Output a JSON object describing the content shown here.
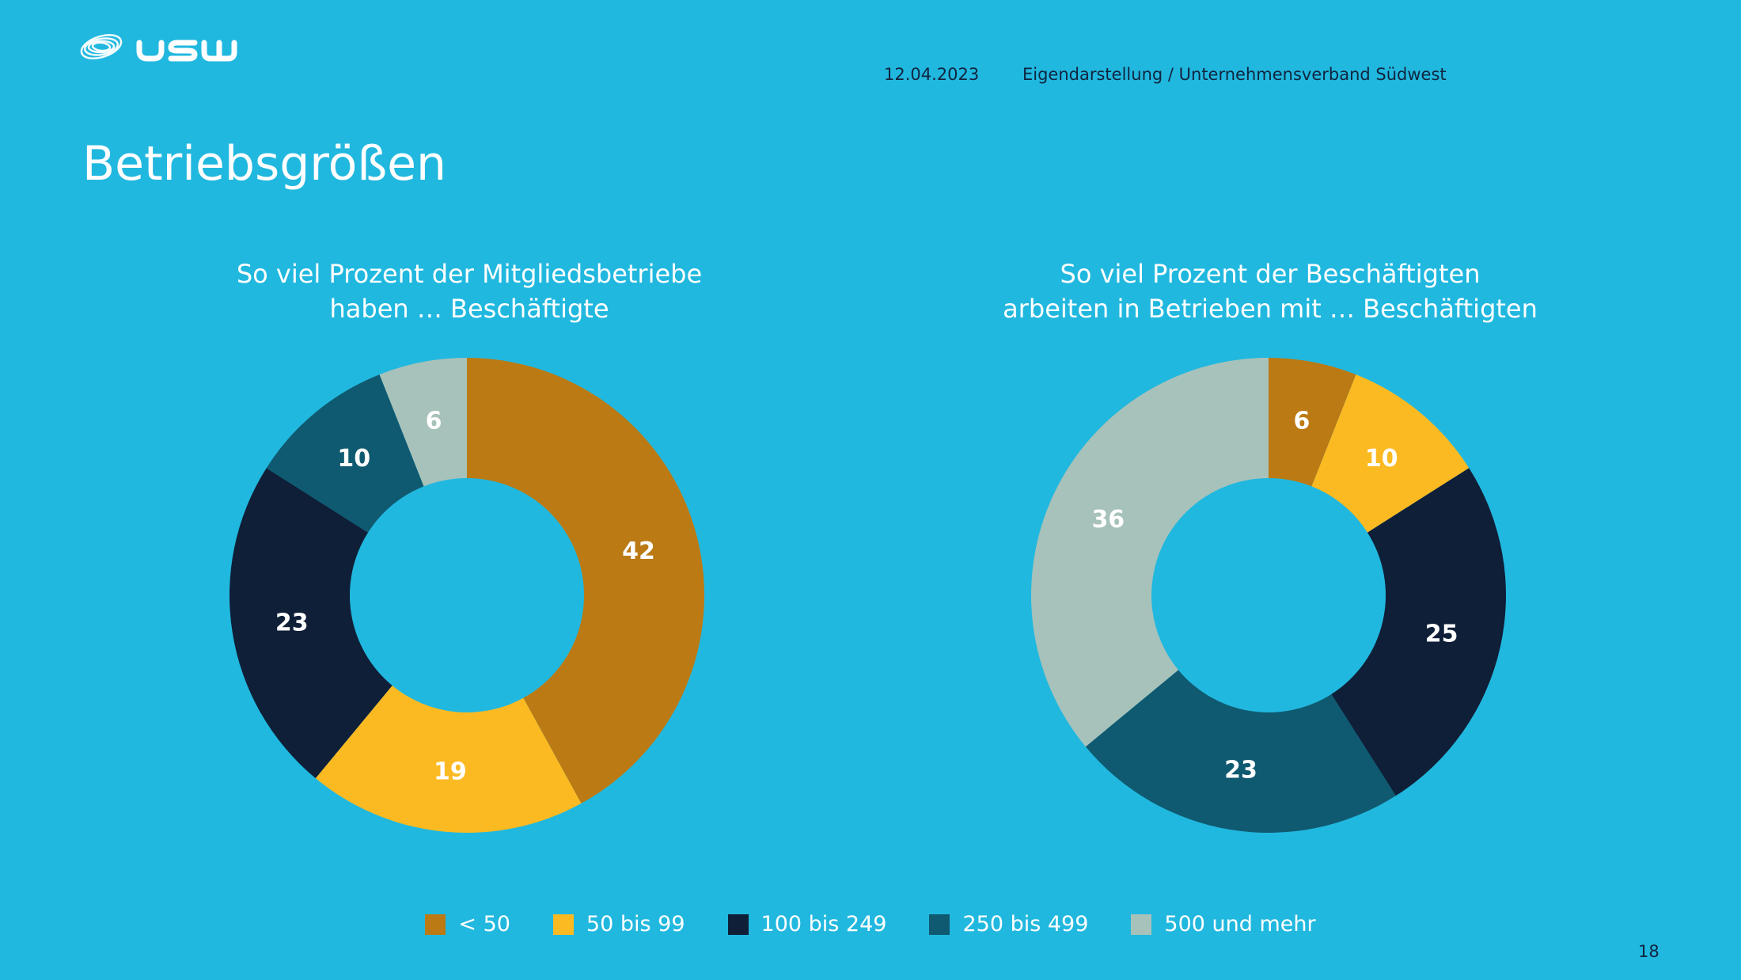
{
  "header": {
    "logo_text": "USW",
    "date": "12.04.2023",
    "source": "Eigendarstellung / Unternehmensverband Südwest"
  },
  "slide": {
    "title": "Betriebsgrößen",
    "page_number": "18"
  },
  "legend": {
    "items": [
      {
        "label": "< 50",
        "color": "#BB7A14"
      },
      {
        "label": "50 bis 99",
        "color": "#FBBA22"
      },
      {
        "label": "100 bis 249",
        "color": "#0F1F38"
      },
      {
        "label": "250 bis 499",
        "color": "#0F5A70"
      },
      {
        "label": "500 und mehr",
        "color": "#A7C2BA"
      }
    ]
  },
  "chart_data": [
    {
      "type": "pie",
      "subtype": "donut",
      "title_lines": [
        "So viel Prozent der Mitgliedsbetriebe",
        "haben … Beschäftigte"
      ],
      "categories": [
        "< 50",
        "50 bis 99",
        "100 bis 249",
        "250 bis 499",
        "500 und mehr"
      ],
      "values": [
        42,
        19,
        23,
        10,
        6
      ],
      "colors": [
        "#BB7A14",
        "#FBBA22",
        "#0F1F38",
        "#0F5A70",
        "#A7C2BA"
      ],
      "data_labels": true,
      "start": "top",
      "direction": "clockwise",
      "legend_position": "bottom"
    },
    {
      "type": "pie",
      "subtype": "donut",
      "title_lines": [
        "So viel Prozent der Beschäftigten",
        "arbeiten in Betrieben mit … Beschäftigten"
      ],
      "categories": [
        "< 50",
        "50 bis 99",
        "100 bis 249",
        "250 bis 499",
        "500 und mehr"
      ],
      "values": [
        6,
        10,
        25,
        23,
        36
      ],
      "colors": [
        "#BB7A14",
        "#FBBA22",
        "#0F1F38",
        "#0F5A70",
        "#A7C2BA"
      ],
      "data_labels": true,
      "start": "top",
      "direction": "clockwise",
      "legend_position": "bottom"
    }
  ]
}
